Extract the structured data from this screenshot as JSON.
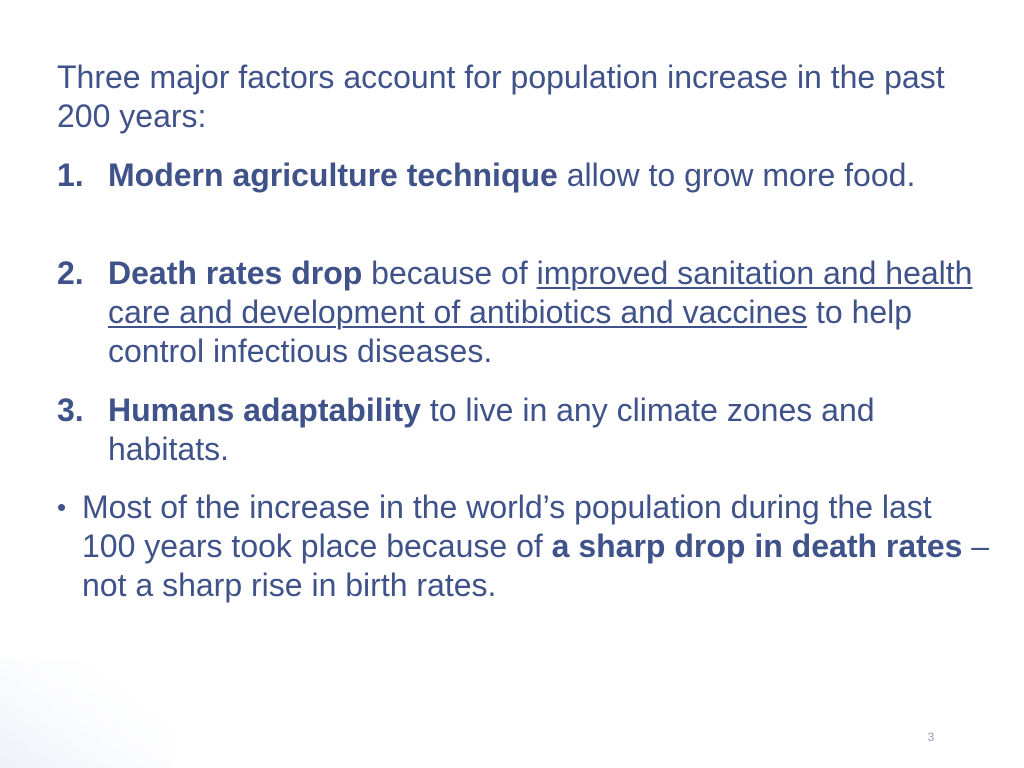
{
  "slide": {
    "intro": "Three major factors account for population increase in the past 200 years:",
    "items": [
      {
        "number": "1.",
        "bold": "Modern agriculture technique",
        "text": " allow to grow more food."
      },
      {
        "number": "2.",
        "bold": "Death rates drop",
        "text_before": " because of ",
        "underlined": "improved sanitation and health care and development of antibiotics and vaccines",
        "text_after": " to help control infectious diseases."
      },
      {
        "number": "3.",
        "bold": "Humans adaptability",
        "text": " to live in any climate zones and habitats."
      }
    ],
    "bullet": {
      "marker": "•",
      "text_before": "Most of the increase in the world’s population during the last 100 years took place because of ",
      "bold": "a sharp drop in death rates",
      "text_after": " – not a sharp rise in birth rates."
    },
    "page_number": "3"
  }
}
